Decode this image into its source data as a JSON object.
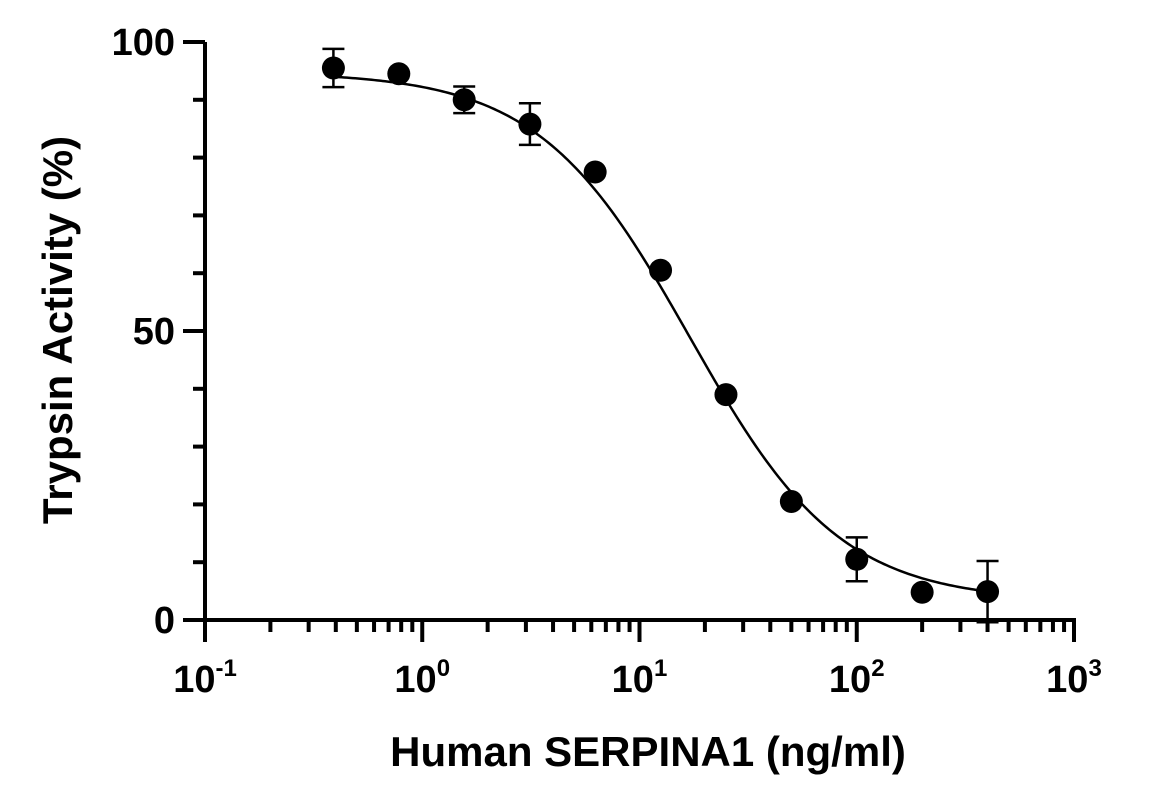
{
  "chart_data": {
    "type": "scatter",
    "title": "",
    "xlabel": "Human SERPINA1 (ng/ml)",
    "ylabel": "Trypsin Activity (%)",
    "xscale": "log",
    "xlim": [
      0.1,
      1000
    ],
    "ylim": [
      0,
      100
    ],
    "x_ticks": [
      {
        "base": "10",
        "exp": "-1",
        "value": 0.1
      },
      {
        "base": "10",
        "exp": "0",
        "value": 1
      },
      {
        "base": "10",
        "exp": "1",
        "value": 10
      },
      {
        "base": "10",
        "exp": "2",
        "value": 100
      },
      {
        "base": "10",
        "exp": "3",
        "value": 1000
      }
    ],
    "y_ticks": [
      {
        "label": "0",
        "value": 0
      },
      {
        "label": "50",
        "value": 50
      },
      {
        "label": "100",
        "value": 100
      }
    ],
    "series": [
      {
        "x": [
          0.39,
          0.78,
          1.56,
          3.13,
          6.25,
          12.5,
          25,
          50,
          100,
          200,
          400
        ],
        "y": [
          95.5,
          94.5,
          90.0,
          85.8,
          77.5,
          60.5,
          39.0,
          20.5,
          10.5,
          4.8,
          4.9
        ],
        "error": [
          3.3,
          0,
          2.3,
          3.6,
          0,
          0,
          0,
          0,
          3.8,
          0,
          5.3
        ]
      }
    ],
    "fit_curve": {
      "model": "4PL",
      "top": 94.8,
      "bottom": 3.2,
      "ec50": 17.0,
      "hill": 1.25
    },
    "grid": false,
    "legend": "none",
    "colors": {
      "marker": "#000000",
      "line": "#000000",
      "background": "#ffffff"
    }
  }
}
